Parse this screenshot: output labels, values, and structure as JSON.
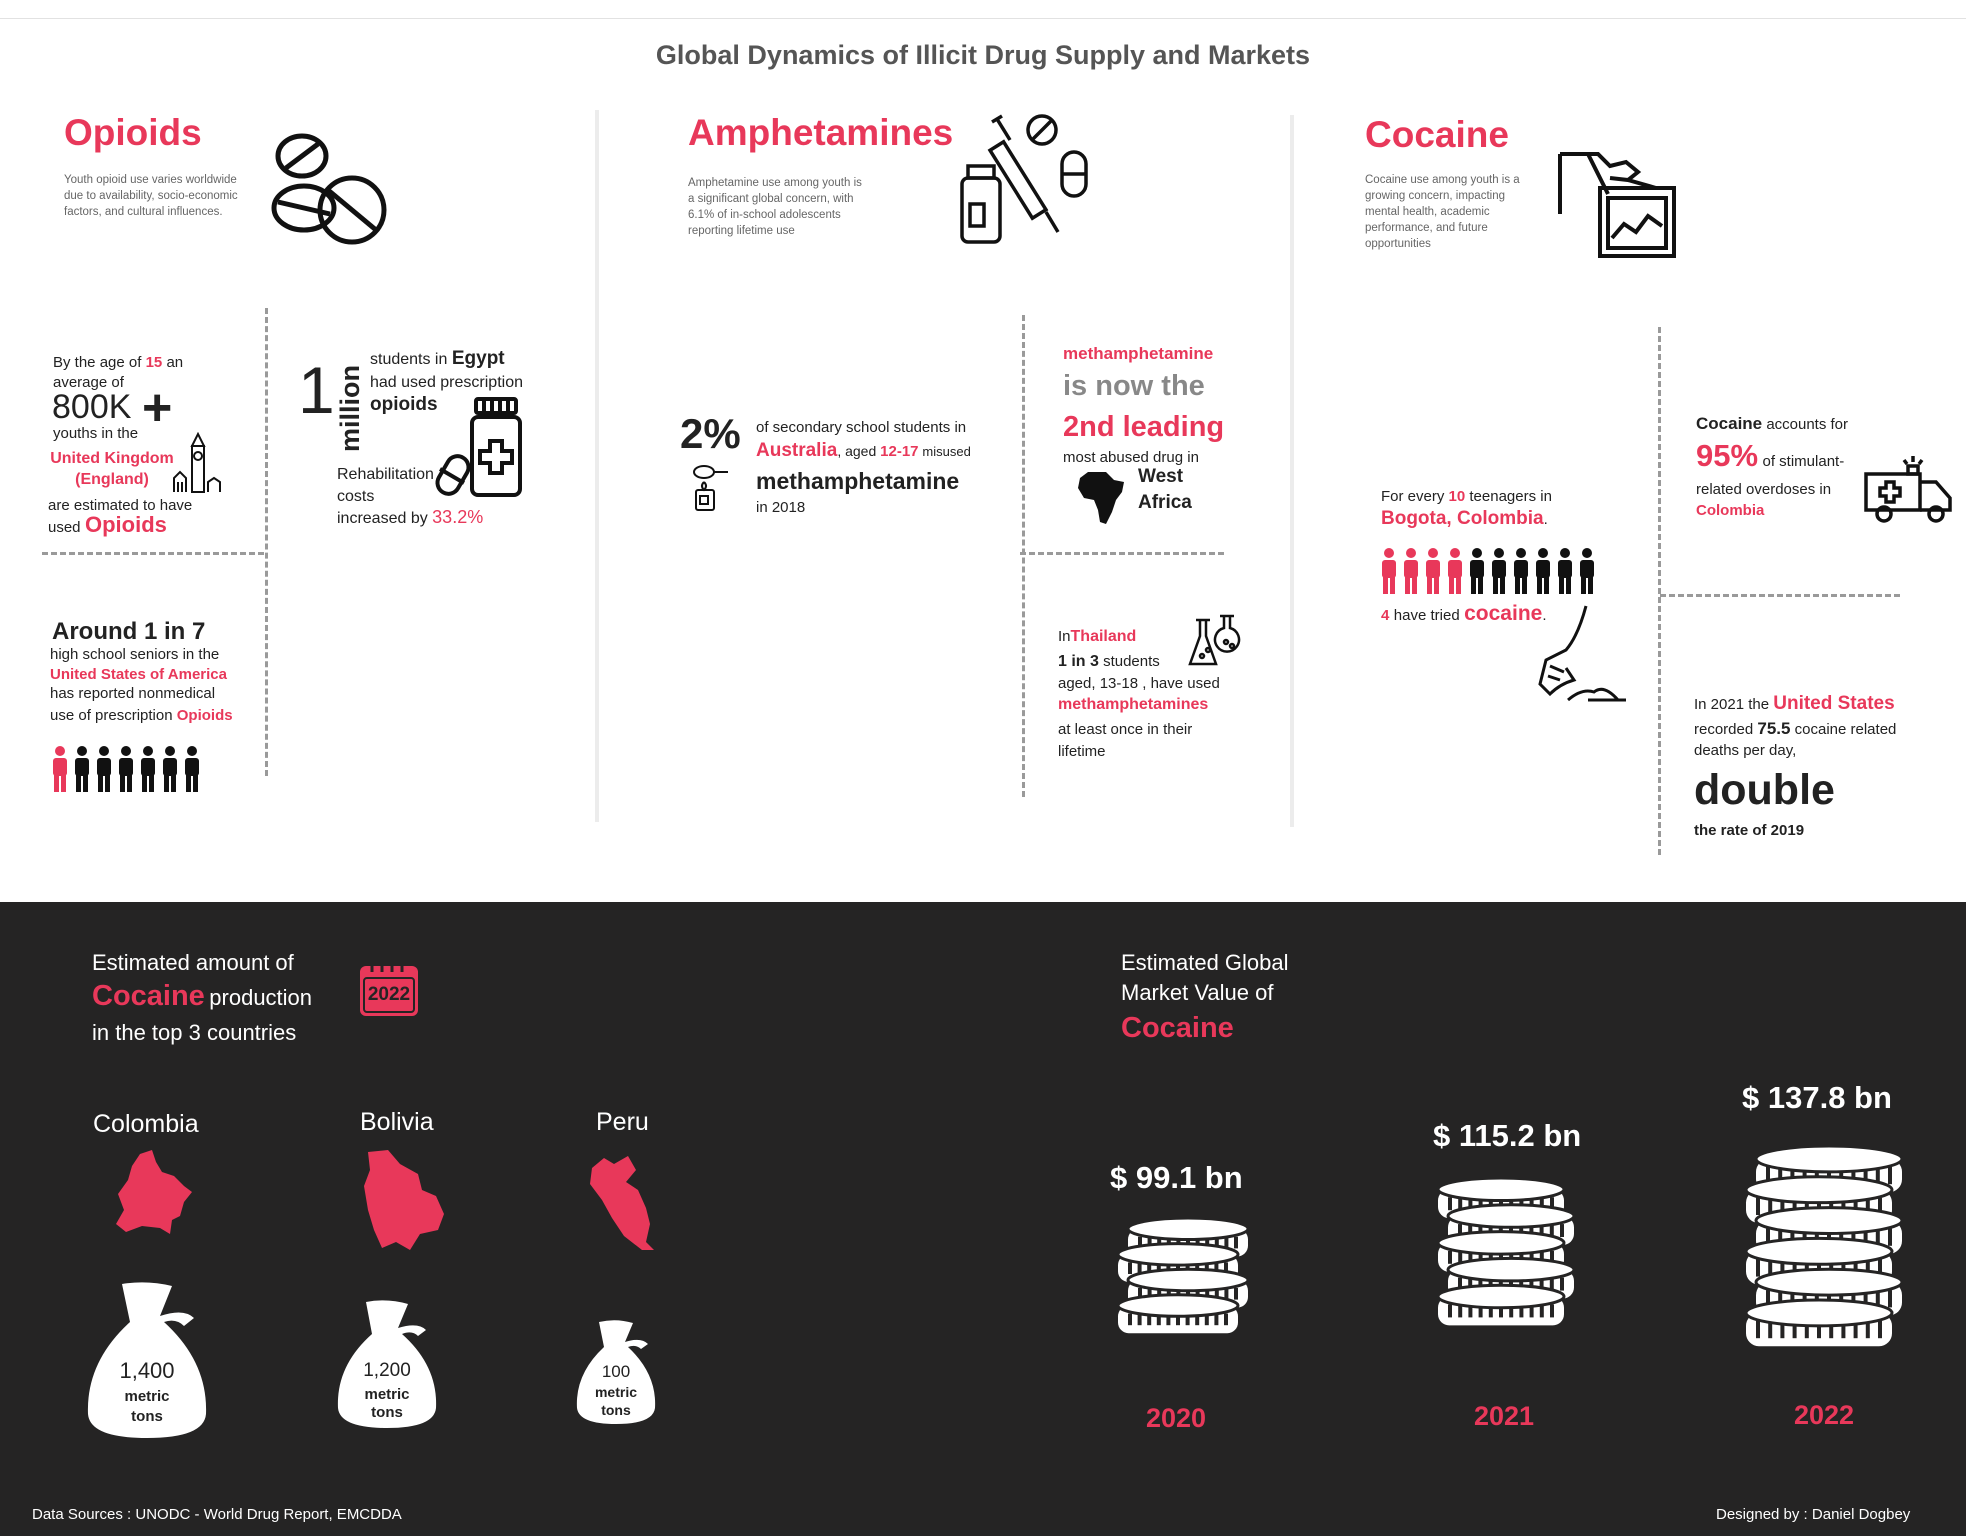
{
  "title": "Global Dynamics of Illicit Drug Supply and Markets",
  "colors": {
    "accent": "#e8385a",
    "dark_bg": "#252424",
    "text": "#222222",
    "muted": "#666666"
  },
  "icons": [
    "pills-icon",
    "syringe-vial-icon",
    "cocaine-tray-icon",
    "big-ben-icon",
    "medicine-bottle-icon",
    "spoon-lighter-icon",
    "africa-map-icon",
    "flask-icon",
    "ambulance-icon",
    "snorting-icon",
    "calendar-icon",
    "colombia-map-icon",
    "bolivia-map-icon",
    "peru-map-icon",
    "money-bag-icon",
    "coin-stack-icon",
    "person-icon"
  ],
  "opioids": {
    "heading": "Opioids",
    "desc": "Youth opioid use varies  worldwide due to  availability, socio-economic factors, and cultural influences.",
    "uk": {
      "p1": "By the age of",
      "age": "15",
      "p2": "an",
      "p3": "average of",
      "count": "800K",
      "plus": "+",
      "p4": "youths in the",
      "place1": "United Kingdom",
      "place2": "(England)",
      "p5": "are estimated to have",
      "p6": "used",
      "drug": "Opioids"
    },
    "egypt": {
      "big1": "1",
      "big2": "million",
      "p1": "students in",
      "country": "Egypt",
      "p2": "had used prescription",
      "drug": "opioids",
      "r1": "Rehabilitation",
      "r2": "costs",
      "r3": "increased by",
      "pct": "33.2%"
    },
    "usa": {
      "headline": "Around 1 in 7",
      "p1": "high school seniors in the",
      "country": "United States of America",
      "p2": "has reported nonmedical",
      "p3": "use of prescription",
      "drug": "Opioids",
      "people_total": 7,
      "people_highlight": 1
    }
  },
  "amphetamines": {
    "heading": "Amphetamines",
    "desc": "Amphetamine use among youth is a significant global concern, with 6.1% of in-school adolescents reporting lifetime use",
    "australia": {
      "pct": "2%",
      "p1": "of secondary school students in",
      "country": "Australia",
      "p2": ", aged",
      "ages": "12-17",
      "p3": "misused",
      "drug": "methamphetamine",
      "p4": "in 2018"
    },
    "africa": {
      "drug": "methamphetamine",
      "l1": "is now the",
      "l2": "2nd leading",
      "l3": "most abused drug in",
      "region1": "West",
      "region2": "Africa"
    },
    "thailand": {
      "p1": "In",
      "country": "Thailand",
      "ratio": "1 in 3",
      "p2": "students",
      "p3": "aged, 13-18 , have used",
      "drug": "methamphetamines",
      "p4": "at least once in their",
      "p5": "lifetime"
    }
  },
  "cocaine": {
    "heading": "Cocaine",
    "desc": "Cocaine use among youth is a growing concern, impacting mental health, academic performance, and future opportunities",
    "colombia_od": {
      "drug": "Cocaine",
      "p1": "accounts for",
      "pct": "95%",
      "p2": "of stimulant-",
      "p3": "related overdoses in",
      "country": "Colombia"
    },
    "bogota": {
      "p1": "For every",
      "num": "10",
      "p2": "teenagers in",
      "city": "Bogota, Colombia",
      "p3": ".",
      "count": "4",
      "p4": "have tried",
      "drug": "cocaine",
      "p5": ".",
      "people_total": 10,
      "people_highlight": 4
    },
    "us": {
      "p1": "In 2021 the",
      "country": "United States",
      "p2": "recorded",
      "num": "75.5",
      "p3": "cocaine related",
      "p4": "deaths per day,",
      "big": "double",
      "p5": "the rate of 2019"
    }
  },
  "production": {
    "h1": "Estimated amount of",
    "drug": "Cocaine",
    "h2": "production",
    "h3": "in the top 3 countries",
    "year": "2022",
    "countries": [
      {
        "name": "Colombia",
        "amount": "1,400",
        "unit1": "metric",
        "unit2": "tons"
      },
      {
        "name": "Bolivia",
        "amount": "1,200",
        "unit1": "metric",
        "unit2": "tons"
      },
      {
        "name": "Peru",
        "amount": "100",
        "unit1": "metric",
        "unit2": "tons"
      }
    ]
  },
  "market": {
    "h1": "Estimated Global",
    "h2": "Market Value of",
    "drug": "Cocaine",
    "years": [
      {
        "value": "$ 99.1 bn",
        "year": "2020"
      },
      {
        "value": "$ 115.2 bn",
        "year": "2021"
      },
      {
        "value": "$ 137.8 bn",
        "year": "2022"
      }
    ]
  },
  "footer": {
    "sources": "Data Sources : UNODC - World Drug Report, EMCDDA",
    "credit": "Designed by : Daniel Dogbey"
  }
}
